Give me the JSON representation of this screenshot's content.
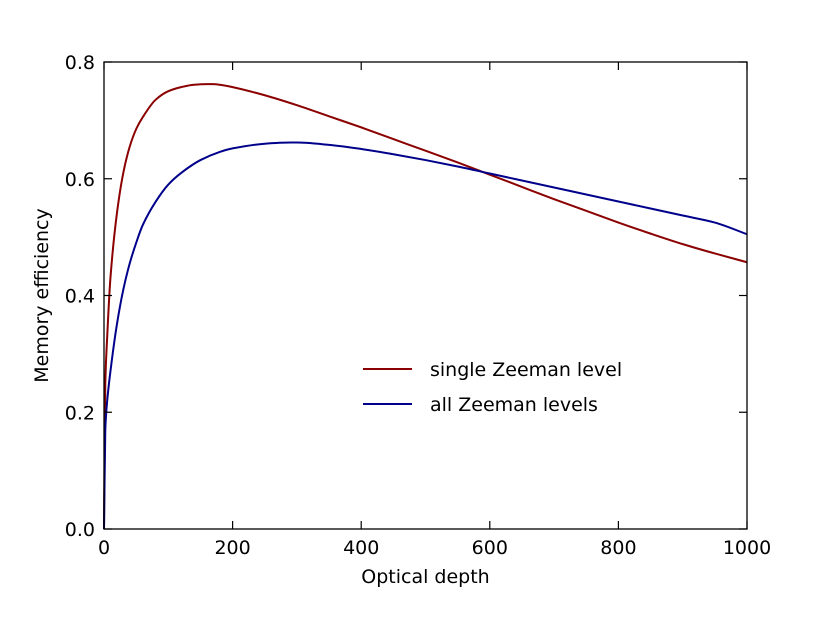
{
  "chart_data": {
    "type": "line",
    "title": "",
    "xlabel": "Optical depth",
    "ylabel": "Memory efficiency",
    "xlim": [
      0,
      1000
    ],
    "ylim": [
      0.0,
      0.8
    ],
    "xticks": [
      0,
      200,
      400,
      600,
      800,
      1000
    ],
    "xtick_labels": [
      "0",
      "200",
      "400",
      "600",
      "800",
      "1000"
    ],
    "yticks": [
      0.0,
      0.2,
      0.4,
      0.6,
      0.8
    ],
    "ytick_labels": [
      "0.0",
      "0.2",
      "0.4",
      "0.6",
      "0.8"
    ],
    "grid": false,
    "legend_position": "center-right",
    "series": [
      {
        "name": "single Zeeman level",
        "color": "#8b0000",
        "x": [
          0,
          2,
          5,
          10,
          20,
          30,
          40,
          50,
          60,
          80,
          100,
          120,
          140,
          160,
          170,
          180,
          200,
          250,
          300,
          350,
          400,
          450,
          500,
          550,
          600,
          650,
          700,
          750,
          800,
          850,
          900,
          950,
          1000
        ],
        "y": [
          0.0,
          0.25,
          0.33,
          0.43,
          0.54,
          0.61,
          0.655,
          0.685,
          0.705,
          0.735,
          0.75,
          0.757,
          0.761,
          0.762,
          0.762,
          0.761,
          0.757,
          0.743,
          0.726,
          0.707,
          0.688,
          0.668,
          0.648,
          0.628,
          0.607,
          0.586,
          0.565,
          0.545,
          0.525,
          0.506,
          0.488,
          0.472,
          0.457
        ]
      },
      {
        "name": "all Zeeman levels",
        "color": "#00008b",
        "x": [
          0,
          2,
          5,
          10,
          20,
          30,
          40,
          50,
          60,
          80,
          100,
          120,
          150,
          180,
          200,
          250,
          290,
          300,
          350,
          400,
          450,
          500,
          550,
          600,
          650,
          700,
          750,
          800,
          850,
          900,
          950,
          1000
        ],
        "y": [
          0.0,
          0.17,
          0.22,
          0.27,
          0.35,
          0.41,
          0.455,
          0.49,
          0.52,
          0.56,
          0.59,
          0.61,
          0.632,
          0.646,
          0.652,
          0.66,
          0.662,
          0.662,
          0.658,
          0.651,
          0.642,
          0.632,
          0.621,
          0.609,
          0.597,
          0.585,
          0.573,
          0.561,
          0.549,
          0.537,
          0.525,
          0.505
        ]
      }
    ]
  }
}
